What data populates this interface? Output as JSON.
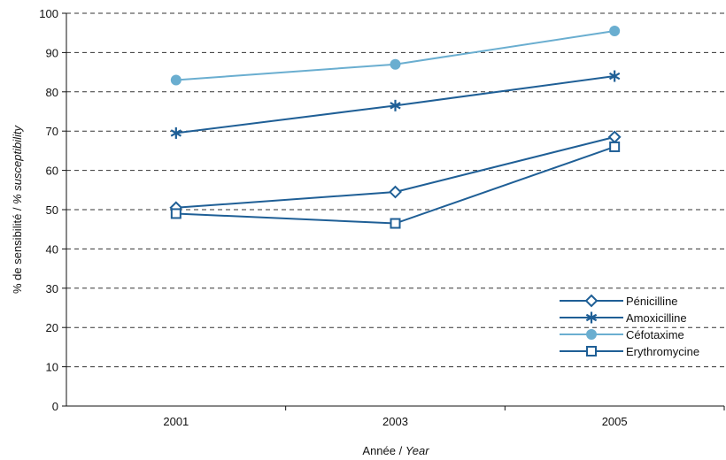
{
  "chart_data": {
    "type": "line",
    "title": "",
    "x": [
      "2001",
      "2003",
      "2005"
    ],
    "xlabel": {
      "main": "Année",
      "sep": " / ",
      "italic": "Year"
    },
    "ylabel": {
      "main": "% de sensibilité",
      "sep": " / ",
      "italic": "% susceptibility"
    },
    "ylim": [
      0,
      100
    ],
    "yticks": [
      "0",
      "10",
      "20",
      "30",
      "40",
      "50",
      "60",
      "70",
      "80",
      "90",
      "100"
    ],
    "grid": "horizontal-dashed",
    "legend_position": "bottom-right",
    "series": [
      {
        "name": "Pénicilline",
        "values": [
          50.5,
          54.5,
          68.5
        ],
        "color": "#1f5f96",
        "marker": "diamond-open"
      },
      {
        "name": "Amoxicilline",
        "values": [
          69.5,
          76.5,
          84
        ],
        "color": "#1f5f96",
        "marker": "asterisk"
      },
      {
        "name": "Céfotaxime",
        "values": [
          83,
          87,
          95.5
        ],
        "color": "#6aaed0",
        "marker": "circle-filled"
      },
      {
        "name": "Erythromycine",
        "values": [
          49,
          46.5,
          66
        ],
        "color": "#1f5f96",
        "marker": "square-open"
      }
    ]
  }
}
